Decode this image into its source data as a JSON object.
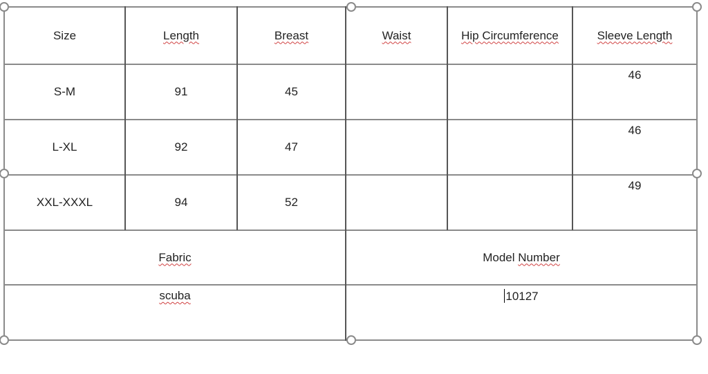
{
  "table": {
    "headers": [
      "Size",
      "Length",
      "Breast",
      "Waist",
      "Hip Circumference",
      "Sleeve Length"
    ],
    "rows": [
      {
        "size": "S-M",
        "length": "91",
        "breast": "45",
        "waist": "",
        "hip": "",
        "sleeve": "46"
      },
      {
        "size": "L-XL",
        "length": "92",
        "breast": "47",
        "waist": "",
        "hip": "",
        "sleeve": "46"
      },
      {
        "size": "XXL-XXXL",
        "length": "94",
        "breast": "52",
        "waist": "",
        "hip": "",
        "sleeve": "49"
      }
    ],
    "fabric_label": "Fabric",
    "model_label_1": "Model",
    "model_label_2": "Number",
    "fabric_value": "scuba",
    "model_value": "10127"
  }
}
